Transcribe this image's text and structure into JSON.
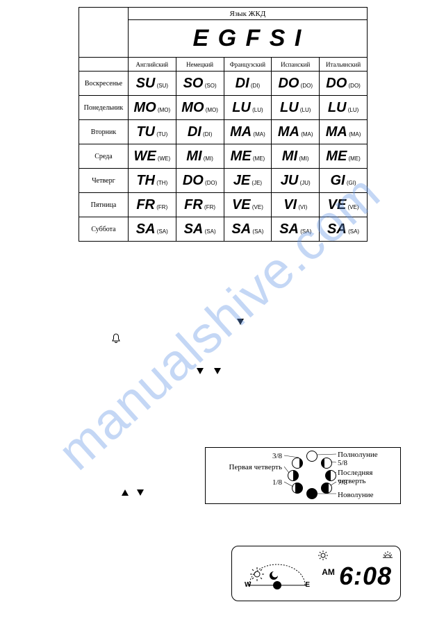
{
  "watermark": "manualshive.com",
  "lang_table": {
    "title": "Язык ЖКД",
    "big_letters": "E G F S I",
    "headers": [
      "Английский",
      "Немецкий",
      "Французский",
      "Испанский",
      "Итальянский"
    ],
    "rows": [
      {
        "day": "Воскресенье",
        "cells": [
          [
            "SU",
            "(SU)"
          ],
          [
            "SO",
            "(SO)"
          ],
          [
            "DI",
            "(DI)"
          ],
          [
            "DO",
            "(DO)"
          ],
          [
            "DO",
            "(DO)"
          ]
        ]
      },
      {
        "day": "Понедельник",
        "cells": [
          [
            "MO",
            "(MO)"
          ],
          [
            "MO",
            "(MO)"
          ],
          [
            "LU",
            "(LU)"
          ],
          [
            "LU",
            "(LU)"
          ],
          [
            "LU",
            "(LU)"
          ]
        ]
      },
      {
        "day": "Вторник",
        "cells": [
          [
            "TU",
            "(TU)"
          ],
          [
            "DI",
            "(DI)"
          ],
          [
            "MA",
            "(MA)"
          ],
          [
            "MA",
            "(MA)"
          ],
          [
            "MA",
            "(MA)"
          ]
        ]
      },
      {
        "day": "Среда",
        "cells": [
          [
            "WE",
            "(WE)"
          ],
          [
            "MI",
            "(MI)"
          ],
          [
            "ME",
            "(ME)"
          ],
          [
            "MI",
            "(MI)"
          ],
          [
            "ME",
            "(ME)"
          ]
        ]
      },
      {
        "day": "Четверг",
        "cells": [
          [
            "TH",
            "(TH)"
          ],
          [
            "DO",
            "(DO)"
          ],
          [
            "JE",
            "(JE)"
          ],
          [
            "JU",
            "(JU)"
          ],
          [
            "GI",
            "(GI)"
          ]
        ]
      },
      {
        "day": "Пятница",
        "cells": [
          [
            "FR",
            "(FR)"
          ],
          [
            "FR",
            "(FR)"
          ],
          [
            "VE",
            "(VE)"
          ],
          [
            "VI",
            "(VI)"
          ],
          [
            "VE",
            "(VE)"
          ]
        ]
      },
      {
        "day": "Суббота",
        "cells": [
          [
            "SA",
            "(SA)"
          ],
          [
            "SA",
            "(SA)"
          ],
          [
            "SA",
            "(SA)"
          ],
          [
            "SA",
            "(SA)"
          ],
          [
            "SA",
            "(SA)"
          ]
        ]
      }
    ]
  },
  "moon": {
    "labels": {
      "l38": "3/8",
      "first_quarter": "Первая четверть",
      "l18": "1/8",
      "full": "Полнолуние",
      "l58": "5/8",
      "last_quarter": "Последняя четверть",
      "l78": "7/8",
      "new": "Новолуние"
    }
  },
  "sun": {
    "am": "AM",
    "time": "6:08",
    "w": "W",
    "e": "E"
  },
  "colors": {
    "watermark": "rgba(100,150,230,0.38)",
    "border": "#000000",
    "bg": "#ffffff"
  }
}
